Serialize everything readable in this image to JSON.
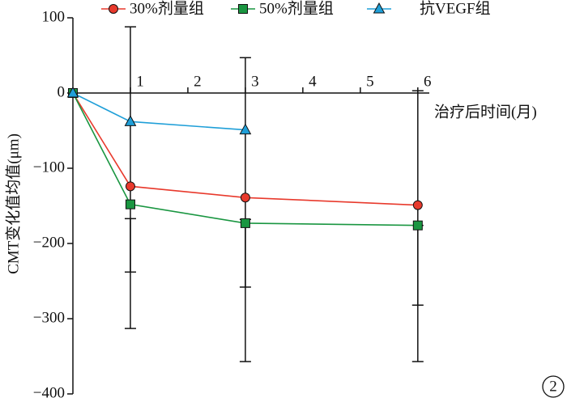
{
  "chart_data": {
    "type": "line",
    "y_label": "CMT变化值均值(μm)",
    "x_label": "治疗后时间(月)",
    "panel_label": "2",
    "xlim": [
      0,
      6.2
    ],
    "xticks": [
      1,
      2,
      3,
      4,
      5,
      6
    ],
    "ylim": [
      -400,
      100
    ],
    "yticks": [
      100,
      0,
      {
        "value": -100,
        "label": "−100"
      },
      {
        "value": -200,
        "label": "−200"
      },
      {
        "value": -300,
        "label": "−300"
      },
      {
        "value": -400,
        "label": "−400"
      }
    ],
    "series": [
      {
        "name": "30%剂量组",
        "color": "#e8392c",
        "marker": "circle",
        "x": [
          0,
          1,
          3,
          6
        ],
        "values": [
          0,
          -124,
          -139,
          -149
        ]
      },
      {
        "name": "50%剂量组",
        "color": "#1a9641",
        "marker": "square",
        "x": [
          0,
          1,
          3,
          6
        ],
        "values": [
          0,
          -148,
          -173,
          -176
        ]
      },
      {
        "name": "抗VEGF组",
        "color": "#1f9fd8",
        "marker": "triangle",
        "x": [
          0,
          1,
          3
        ],
        "values": [
          0,
          -38,
          -49
        ]
      }
    ],
    "error_bars": [
      {
        "x": 1,
        "low": -313,
        "high": 88
      },
      {
        "x": 1,
        "low": -238,
        "high": -167
      },
      {
        "x": 3,
        "low": -357,
        "high": 47
      },
      {
        "x": 3,
        "low": -258,
        "high": -168
      },
      {
        "x": 6,
        "low": -357,
        "high": 3
      },
      {
        "x": 6,
        "low": -282,
        "high": -176
      }
    ]
  }
}
